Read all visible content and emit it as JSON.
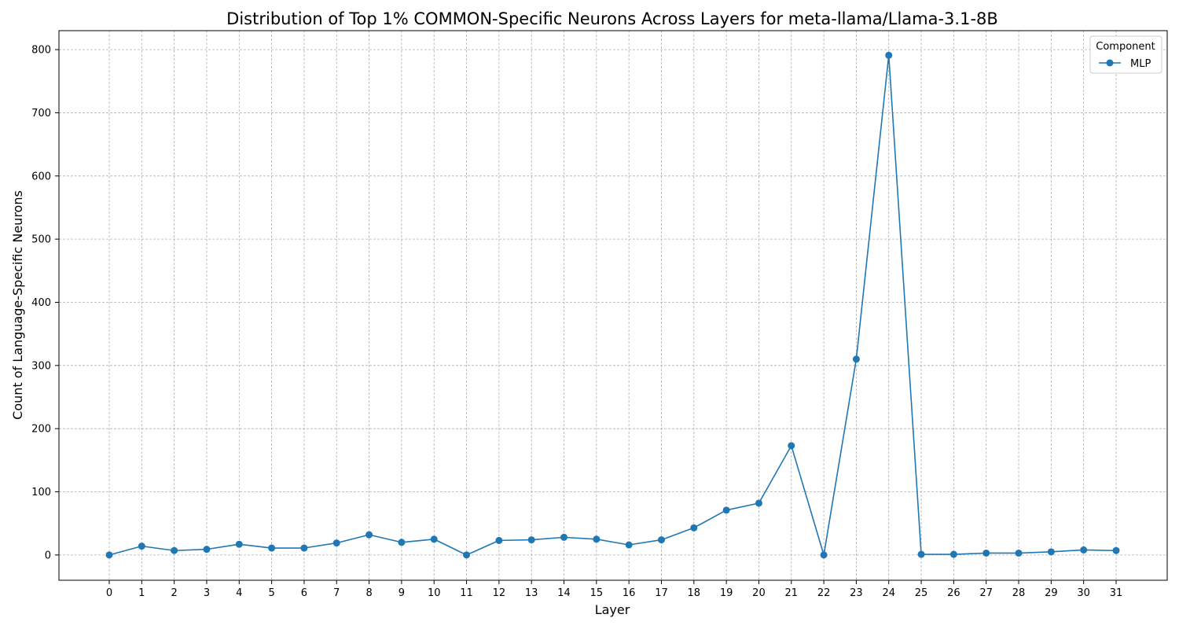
{
  "chart_data": {
    "type": "line",
    "title": "Distribution of Top 1% COMMON-Specific Neurons Across Layers for meta-llama/Llama-3.1-8B",
    "xlabel": "Layer",
    "ylabel": "Count of Language-Specific Neurons",
    "categories": [
      "0",
      "1",
      "2",
      "3",
      "4",
      "5",
      "6",
      "7",
      "8",
      "9",
      "10",
      "11",
      "12",
      "13",
      "14",
      "15",
      "16",
      "17",
      "18",
      "19",
      "20",
      "21",
      "22",
      "23",
      "24",
      "25",
      "26",
      "27",
      "28",
      "29",
      "30",
      "31"
    ],
    "yticks": [
      0,
      100,
      200,
      300,
      400,
      500,
      600,
      700,
      800
    ],
    "ylim": [
      -40,
      830
    ],
    "grid": true,
    "legend": {
      "title": "Component",
      "position": "top-right"
    },
    "series": [
      {
        "name": "MLP",
        "color": "#1f77b4",
        "marker": "circle",
        "values": [
          0,
          14,
          7,
          9,
          17,
          11,
          11,
          19,
          32,
          20,
          25,
          0,
          23,
          24,
          28,
          25,
          16,
          24,
          43,
          71,
          82,
          173,
          0,
          310,
          791,
          1,
          1,
          3,
          3,
          5,
          8,
          7
        ]
      }
    ]
  }
}
